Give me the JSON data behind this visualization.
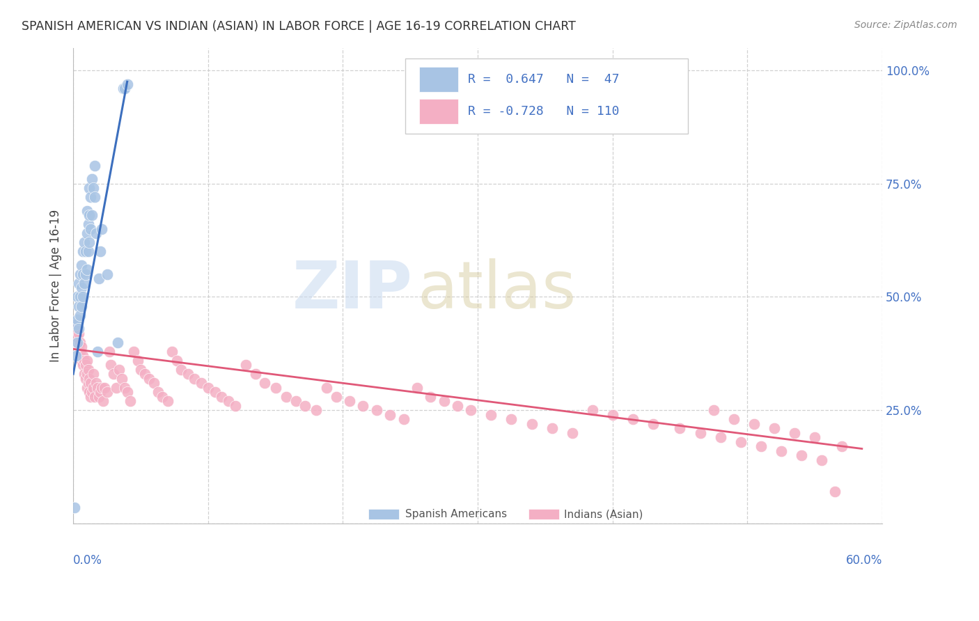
{
  "title": "SPANISH AMERICAN VS INDIAN (ASIAN) IN LABOR FORCE | AGE 16-19 CORRELATION CHART",
  "source": "Source: ZipAtlas.com",
  "ylabel": "In Labor Force | Age 16-19",
  "blue_color": "#a8c4e4",
  "pink_color": "#f4afc4",
  "blue_line_color": "#3c6fbe",
  "pink_line_color": "#e05878",
  "right_tick_color": "#4472c4",
  "bottom_label_color": "#4472c4",
  "title_color": "#333333",
  "source_color": "#888888",
  "xlim": [
    0.0,
    0.6
  ],
  "ylim": [
    0.0,
    1.05
  ],
  "blue_scatter_x": [
    0.001,
    0.002,
    0.002,
    0.003,
    0.003,
    0.003,
    0.004,
    0.004,
    0.004,
    0.005,
    0.005,
    0.005,
    0.006,
    0.006,
    0.006,
    0.007,
    0.007,
    0.007,
    0.008,
    0.008,
    0.009,
    0.009,
    0.01,
    0.01,
    0.01,
    0.011,
    0.011,
    0.012,
    0.012,
    0.012,
    0.013,
    0.013,
    0.014,
    0.014,
    0.015,
    0.016,
    0.016,
    0.017,
    0.018,
    0.019,
    0.02,
    0.021,
    0.025,
    0.033,
    0.037,
    0.038,
    0.04
  ],
  "blue_scatter_y": [
    0.035,
    0.37,
    0.44,
    0.4,
    0.45,
    0.5,
    0.43,
    0.48,
    0.53,
    0.46,
    0.5,
    0.55,
    0.48,
    0.52,
    0.57,
    0.5,
    0.55,
    0.6,
    0.53,
    0.62,
    0.55,
    0.6,
    0.56,
    0.64,
    0.69,
    0.6,
    0.66,
    0.62,
    0.68,
    0.74,
    0.65,
    0.72,
    0.68,
    0.76,
    0.74,
    0.72,
    0.79,
    0.64,
    0.38,
    0.54,
    0.6,
    0.65,
    0.55,
    0.4,
    0.96,
    0.96,
    0.97
  ],
  "pink_scatter_x": [
    0.001,
    0.002,
    0.003,
    0.004,
    0.004,
    0.005,
    0.005,
    0.006,
    0.006,
    0.007,
    0.007,
    0.008,
    0.008,
    0.009,
    0.009,
    0.01,
    0.01,
    0.01,
    0.011,
    0.011,
    0.012,
    0.012,
    0.013,
    0.013,
    0.014,
    0.015,
    0.015,
    0.016,
    0.017,
    0.018,
    0.019,
    0.02,
    0.021,
    0.022,
    0.023,
    0.025,
    0.027,
    0.028,
    0.03,
    0.032,
    0.034,
    0.036,
    0.038,
    0.04,
    0.042,
    0.045,
    0.048,
    0.05,
    0.053,
    0.056,
    0.06,
    0.063,
    0.066,
    0.07,
    0.073,
    0.077,
    0.08,
    0.085,
    0.09,
    0.095,
    0.1,
    0.105,
    0.11,
    0.115,
    0.12,
    0.128,
    0.135,
    0.142,
    0.15,
    0.158,
    0.165,
    0.172,
    0.18,
    0.188,
    0.195,
    0.205,
    0.215,
    0.225,
    0.235,
    0.245,
    0.255,
    0.265,
    0.275,
    0.285,
    0.295,
    0.31,
    0.325,
    0.34,
    0.355,
    0.37,
    0.385,
    0.4,
    0.415,
    0.43,
    0.45,
    0.465,
    0.48,
    0.495,
    0.51,
    0.525,
    0.54,
    0.555,
    0.57,
    0.475,
    0.49,
    0.505,
    0.52,
    0.535,
    0.55,
    0.565
  ],
  "pink_scatter_y": [
    0.44,
    0.43,
    0.41,
    0.39,
    0.42,
    0.38,
    0.4,
    0.36,
    0.39,
    0.35,
    0.37,
    0.33,
    0.36,
    0.32,
    0.35,
    0.3,
    0.33,
    0.36,
    0.31,
    0.34,
    0.29,
    0.32,
    0.28,
    0.31,
    0.29,
    0.3,
    0.33,
    0.28,
    0.31,
    0.3,
    0.28,
    0.29,
    0.3,
    0.27,
    0.3,
    0.29,
    0.38,
    0.35,
    0.33,
    0.3,
    0.34,
    0.32,
    0.3,
    0.29,
    0.27,
    0.38,
    0.36,
    0.34,
    0.33,
    0.32,
    0.31,
    0.29,
    0.28,
    0.27,
    0.38,
    0.36,
    0.34,
    0.33,
    0.32,
    0.31,
    0.3,
    0.29,
    0.28,
    0.27,
    0.26,
    0.35,
    0.33,
    0.31,
    0.3,
    0.28,
    0.27,
    0.26,
    0.25,
    0.3,
    0.28,
    0.27,
    0.26,
    0.25,
    0.24,
    0.23,
    0.3,
    0.28,
    0.27,
    0.26,
    0.25,
    0.24,
    0.23,
    0.22,
    0.21,
    0.2,
    0.25,
    0.24,
    0.23,
    0.22,
    0.21,
    0.2,
    0.19,
    0.18,
    0.17,
    0.16,
    0.15,
    0.14,
    0.17,
    0.25,
    0.23,
    0.22,
    0.21,
    0.2,
    0.19,
    0.07
  ],
  "blue_trend_x": [
    0.0,
    0.04
  ],
  "blue_trend_y": [
    0.33,
    0.975
  ],
  "pink_trend_x": [
    0.0,
    0.585
  ],
  "pink_trend_y": [
    0.385,
    0.165
  ],
  "legend_blue_text": "R =  0.647   N =  47",
  "legend_pink_text": "R = -0.728   N = 110",
  "legend_label_blue": "Spanish Americans",
  "legend_label_pink": "Indians (Asian)",
  "watermark_zip": "ZIP",
  "watermark_atlas": "atlas"
}
